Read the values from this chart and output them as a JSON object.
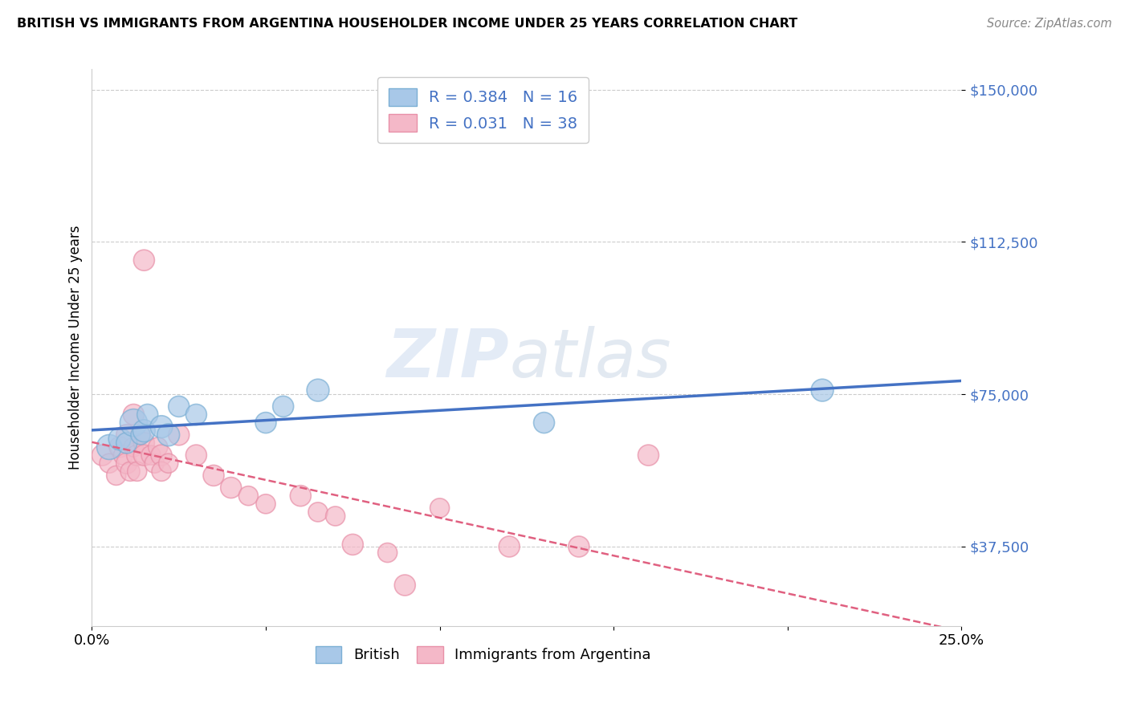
{
  "title": "BRITISH VS IMMIGRANTS FROM ARGENTINA HOUSEHOLDER INCOME UNDER 25 YEARS CORRELATION CHART",
  "source": "Source: ZipAtlas.com",
  "ylabel": "Householder Income Under 25 years",
  "xlabel": "",
  "xlim": [
    0.0,
    0.25
  ],
  "ylim": [
    18000,
    155000
  ],
  "yticks": [
    37500,
    75000,
    112500,
    150000
  ],
  "ytick_labels": [
    "$37,500",
    "$75,000",
    "$112,500",
    "$150,000"
  ],
  "xticks": [
    0.0,
    0.05,
    0.1,
    0.15,
    0.2,
    0.25
  ],
  "xtick_labels": [
    "0.0%",
    "",
    "",
    "",
    "",
    "25.0%"
  ],
  "legend_british_R": "0.384",
  "legend_british_N": "16",
  "legend_argentina_R": "0.031",
  "legend_argentina_N": "38",
  "blue_scatter_color": "#a8c8e8",
  "pink_scatter_color": "#f4b8c8",
  "blue_edge_color": "#7bafd4",
  "pink_edge_color": "#e890a8",
  "trend_blue": "#4472c4",
  "trend_pink": "#e06080",
  "watermark_color": "#d0dff0",
  "british_x": [
    0.005,
    0.008,
    0.01,
    0.012,
    0.014,
    0.015,
    0.016,
    0.02,
    0.022,
    0.025,
    0.03,
    0.05,
    0.055,
    0.065,
    0.13,
    0.21
  ],
  "british_y": [
    62000,
    64000,
    63000,
    68000,
    65000,
    66000,
    70000,
    67000,
    65000,
    72000,
    70000,
    68000,
    72000,
    76000,
    68000,
    76000
  ],
  "british_size": [
    500,
    400,
    350,
    600,
    300,
    400,
    350,
    400,
    400,
    350,
    350,
    350,
    350,
    400,
    350,
    400
  ],
  "argentina_x": [
    0.003,
    0.005,
    0.007,
    0.008,
    0.009,
    0.01,
    0.01,
    0.011,
    0.012,
    0.012,
    0.013,
    0.013,
    0.014,
    0.015,
    0.015,
    0.015,
    0.017,
    0.018,
    0.019,
    0.02,
    0.02,
    0.022,
    0.025,
    0.03,
    0.035,
    0.04,
    0.045,
    0.05,
    0.06,
    0.065,
    0.07,
    0.075,
    0.085,
    0.09,
    0.1,
    0.12,
    0.14,
    0.16
  ],
  "argentina_y": [
    60000,
    58000,
    55000,
    62000,
    60000,
    65000,
    58000,
    56000,
    70000,
    62000,
    60000,
    56000,
    65000,
    63000,
    60000,
    108000,
    60000,
    58000,
    62000,
    60000,
    56000,
    58000,
    65000,
    60000,
    55000,
    52000,
    50000,
    48000,
    50000,
    46000,
    45000,
    38000,
    36000,
    28000,
    47000,
    37500,
    37500,
    60000
  ],
  "argentina_size": [
    350,
    300,
    300,
    350,
    300,
    350,
    350,
    300,
    350,
    300,
    350,
    300,
    300,
    350,
    350,
    350,
    300,
    300,
    300,
    350,
    300,
    300,
    350,
    350,
    350,
    350,
    300,
    300,
    350,
    300,
    300,
    350,
    300,
    350,
    300,
    350,
    350,
    350
  ]
}
